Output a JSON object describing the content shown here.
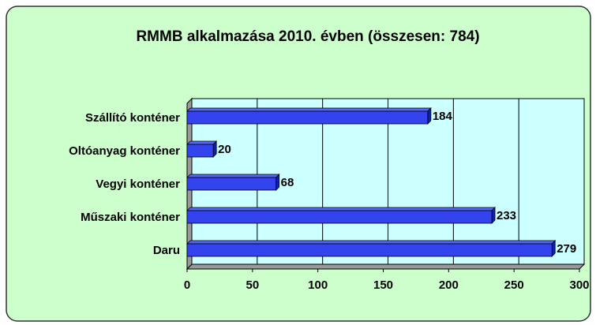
{
  "chart_data": {
    "type": "bar",
    "orientation": "horizontal",
    "title": "RMMB alkalmazása 2010. évben (összesen: 784)",
    "categories": [
      "Szállító konténer",
      "Oltóanyag konténer",
      "Vegyi konténer",
      "Műszaki konténer",
      "Daru"
    ],
    "values": [
      184,
      20,
      68,
      233,
      279
    ],
    "color": "#3344ee",
    "xlim": [
      0,
      300
    ],
    "xticks": [
      0,
      50,
      100,
      150,
      200,
      250,
      300
    ],
    "grid": true
  }
}
